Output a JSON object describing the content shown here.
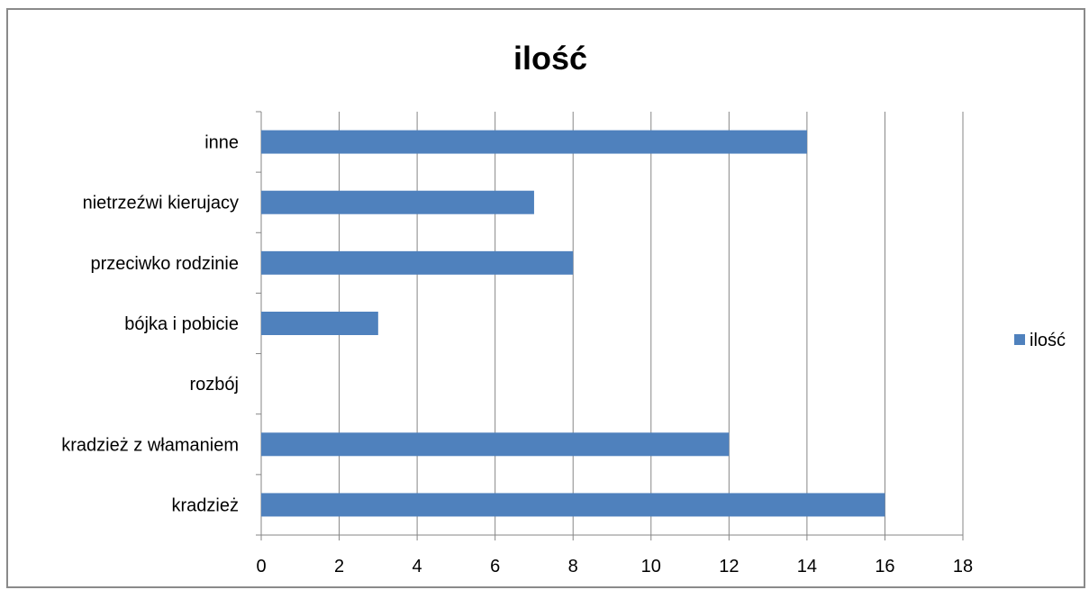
{
  "chart_data": {
    "type": "bar",
    "orientation": "horizontal",
    "title": "ilość",
    "categories": [
      "kradzież",
      "kradzież z włamaniem",
      "rozbój",
      "bójka i pobicie",
      "przeciwko rodzinie",
      "nietrzeźwi kierujacy",
      "inne"
    ],
    "series": [
      {
        "name": "ilość",
        "values": [
          16,
          12,
          0,
          3,
          8,
          7,
          14
        ]
      }
    ],
    "xlim": [
      0,
      18
    ],
    "xticks": [
      0,
      2,
      4,
      6,
      8,
      10,
      12,
      14,
      16,
      18
    ],
    "grid": "vertical",
    "legend_position": "right",
    "colors": {
      "bar": "#4F81BD",
      "grid": "#868686",
      "axis": "#868686"
    }
  }
}
